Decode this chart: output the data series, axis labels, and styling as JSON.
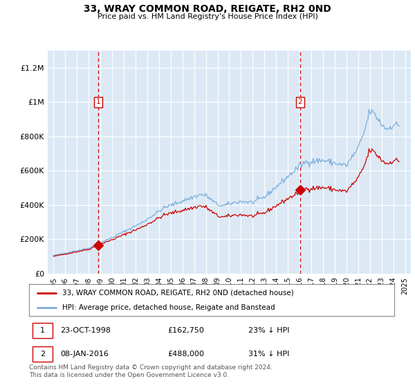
{
  "title": "33, WRAY COMMON ROAD, REIGATE, RH2 0ND",
  "subtitle": "Price paid vs. HM Land Registry's House Price Index (HPI)",
  "ylim": [
    0,
    1300000
  ],
  "yticks": [
    0,
    200000,
    400000,
    600000,
    800000,
    1000000,
    1200000
  ],
  "ytick_labels": [
    "£0",
    "£200K",
    "£400K",
    "£600K",
    "£800K",
    "£1M",
    "£1.2M"
  ],
  "sale1_year": 1998.79,
  "sale1_price": 162750,
  "sale2_year": 2016.04,
  "sale2_price": 488000,
  "line1_color": "#cc0000",
  "line2_color": "#7aaddc",
  "plot_bg": "#dce9f5",
  "grid_color": "#ffffff",
  "legend1": "33, WRAY COMMON ROAD, REIGATE, RH2 0ND (detached house)",
  "legend2": "HPI: Average price, detached house, Reigate and Banstead",
  "footer": "Contains HM Land Registry data © Crown copyright and database right 2024.\nThis data is licensed under the Open Government Licence v3.0.",
  "xlim_left": 1994.5,
  "xlim_right": 2025.5
}
